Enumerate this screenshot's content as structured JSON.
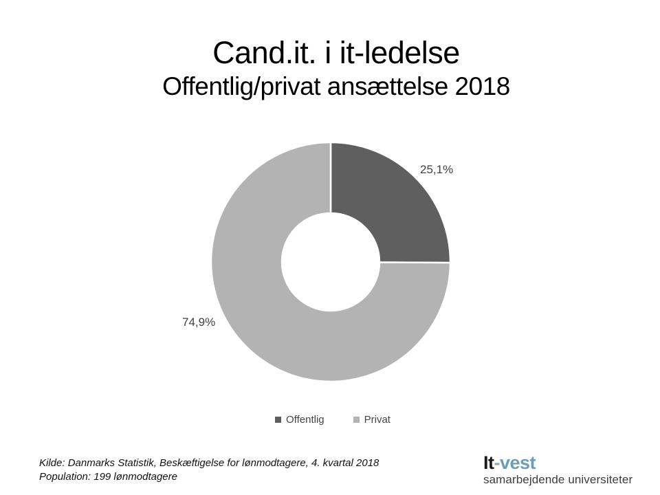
{
  "slide": {
    "title": "Cand.it. i it-ledelse",
    "subtitle": "Offentlig/privat ansættelse 2018"
  },
  "chart_data": {
    "type": "pie",
    "subtype": "doughnut",
    "title": "",
    "categories": [
      "Offentlig",
      "Privat"
    ],
    "values": [
      25.1,
      74.9
    ],
    "value_labels": [
      "25,1%",
      "74,9%"
    ],
    "colors": [
      "#5f5f5f",
      "#b3b3b3"
    ],
    "start_angle_deg": 0,
    "direction": "clockwise",
    "donut_hole_ratio": 0.41,
    "slice_border_color": "#ffffff",
    "legend_position": "bottom",
    "label_color": "#3f3f3f"
  },
  "footer": {
    "source_line1": "Kilde: Danmarks Statistik, Beskæftigelse for lønmodtagere, 4. kvartal 2018",
    "source_line2": "Population: 199 lønmodtagere"
  },
  "logo": {
    "black_part": "It",
    "hyphen": "-",
    "accent_part": "vest",
    "tagline": "samarbejdende universiteter",
    "accent_color": "#6d9cb5",
    "hyphen_color": "#9aa7ae"
  }
}
